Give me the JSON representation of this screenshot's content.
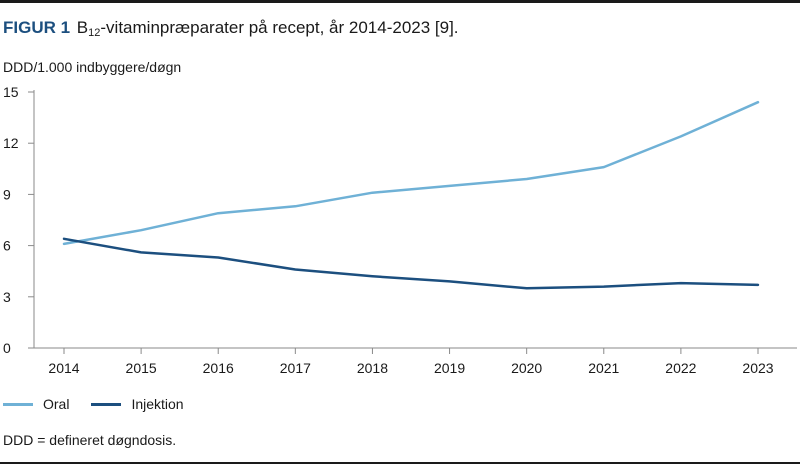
{
  "figure": {
    "label": "FIGUR 1",
    "title_prefix": "B",
    "title_sub": "12",
    "title_rest": "-vitaminpræparater på recept, år 2014-2023 [9]."
  },
  "footnote": "DDD = defineret døgndosis.",
  "chart_data": {
    "type": "line",
    "title": "B12-vitaminpræparater på recept, år 2014-2023 [9].",
    "xlabel": "",
    "ylabel": "DDD/1.000 indbyggere/døgn",
    "ylim": [
      0,
      15
    ],
    "yticks": [
      0,
      3,
      6,
      9,
      12,
      15
    ],
    "grid": false,
    "legend_position": "bottom-left",
    "categories": [
      "2014",
      "2015",
      "2016",
      "2017",
      "2018",
      "2019",
      "2020",
      "2021",
      "2022",
      "2023"
    ],
    "series": [
      {
        "name": "Oral",
        "color": "#6fb1d6",
        "values": [
          6.1,
          6.9,
          7.9,
          8.3,
          9.1,
          9.5,
          9.9,
          10.6,
          12.4,
          14.4
        ]
      },
      {
        "name": "Injektion",
        "color": "#1c4f7f",
        "values": [
          6.4,
          5.6,
          5.3,
          4.6,
          4.2,
          3.9,
          3.5,
          3.6,
          3.8,
          3.7
        ]
      }
    ]
  }
}
